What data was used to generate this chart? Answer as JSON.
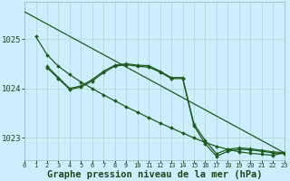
{
  "background_color": "#cceeff",
  "grid_color": "#b0d4cc",
  "line_color": "#1a5c1a",
  "xlabel": "Graphe pression niveau de la mer (hPa)",
  "xlabel_fontsize": 7.5,
  "yticks": [
    1023,
    1024,
    1025
  ],
  "xticks": [
    0,
    1,
    2,
    3,
    4,
    5,
    6,
    7,
    8,
    9,
    10,
    11,
    12,
    13,
    14,
    15,
    16,
    17,
    18,
    19,
    20,
    21,
    22,
    23
  ],
  "xlim": [
    0,
    23
  ],
  "ylim": [
    1022.55,
    1025.75
  ],
  "series": [
    {
      "x": [
        0,
        23
      ],
      "y": [
        1025.55,
        1022.7
      ],
      "marker": null,
      "linewidth": 0.9
    },
    {
      "x": [
        1,
        2,
        3,
        4,
        5,
        6,
        7,
        8,
        9,
        10,
        11,
        12,
        13,
        14,
        15,
        16,
        17,
        18,
        19,
        20,
        21,
        22,
        23
      ],
      "y": [
        1025.05,
        1024.68,
        1024.45,
        1024.28,
        1024.13,
        1024.0,
        1023.87,
        1023.75,
        1023.63,
        1023.52,
        1023.41,
        1023.3,
        1023.2,
        1023.1,
        1023.0,
        1022.91,
        1022.83,
        1022.77,
        1022.72,
        1022.69,
        1022.67,
        1022.65,
        1022.7
      ],
      "marker": "D",
      "linewidth": 0.9
    },
    {
      "x": [
        2,
        3,
        4,
        5,
        6,
        7,
        8,
        9,
        10,
        11,
        12,
        13,
        14,
        15,
        16,
        17,
        18,
        19,
        20,
        21,
        22,
        23
      ],
      "y": [
        1024.45,
        1024.22,
        1024.0,
        1024.05,
        1024.18,
        1024.35,
        1024.47,
        1024.5,
        1024.47,
        1024.46,
        1024.35,
        1024.22,
        1024.22,
        1023.28,
        1022.95,
        1022.68,
        1022.77,
        1022.8,
        1022.78,
        1022.75,
        1022.72,
        1022.7
      ],
      "marker": "+",
      "linewidth": 0.9
    },
    {
      "x": [
        2,
        3,
        4,
        5,
        6,
        7,
        8,
        9,
        10,
        11,
        12,
        13,
        14,
        15,
        16,
        17,
        18,
        19,
        20,
        21,
        22,
        23
      ],
      "y": [
        1024.42,
        1024.2,
        1023.98,
        1024.03,
        1024.15,
        1024.32,
        1024.45,
        1024.48,
        1024.45,
        1024.43,
        1024.33,
        1024.2,
        1024.2,
        1023.25,
        1022.88,
        1022.63,
        1022.73,
        1022.77,
        1022.76,
        1022.73,
        1022.7,
        1022.68
      ],
      "marker": "D",
      "linewidth": 0.9
    }
  ]
}
